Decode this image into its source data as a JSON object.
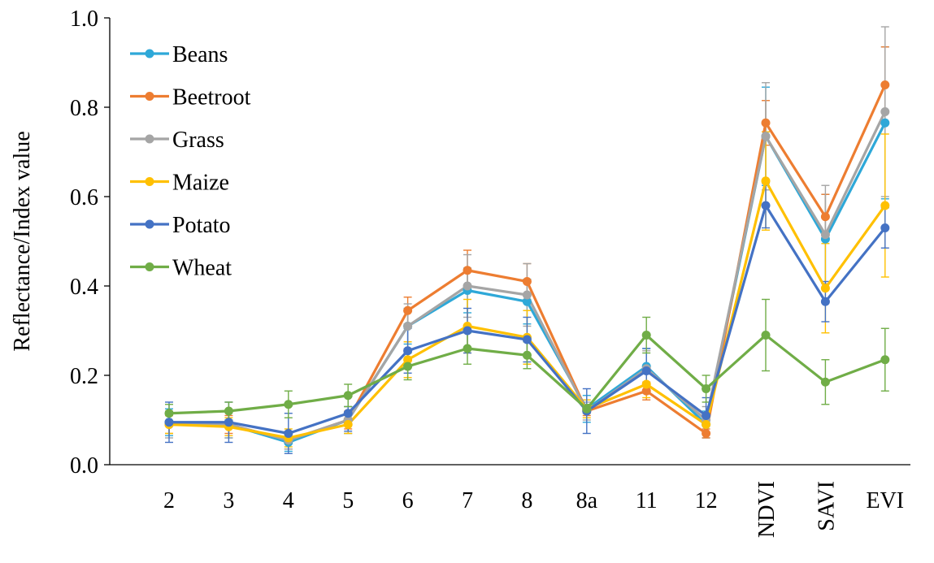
{
  "chart_data": {
    "type": "line",
    "title": "",
    "xlabel": "",
    "ylabel": "Reflectance/Index value",
    "ylim": [
      0,
      1.0
    ],
    "yticks": [
      "0.0",
      "0.2",
      "0.4",
      "0.6",
      "0.8",
      "1.0"
    ],
    "categories": [
      "2",
      "3",
      "4",
      "5",
      "6",
      "7",
      "8",
      "8a",
      "11",
      "12",
      "NDVI",
      "SAVI",
      "EVI"
    ],
    "legend_position": "top-left",
    "grid": false,
    "series": [
      {
        "name": "Beans",
        "color": "#2EA8D8",
        "values": [
          0.095,
          0.09,
          0.05,
          0.1,
          0.31,
          0.39,
          0.365,
          0.125,
          0.22,
          0.09,
          0.735,
          0.505,
          0.765
        ],
        "errors": [
          0.03,
          0.03,
          0.02,
          0.03,
          0.04,
          0.05,
          0.05,
          0.03,
          0.04,
          0.03,
          0.11,
          0.1,
          0.17
        ]
      },
      {
        "name": "Beetroot",
        "color": "#ED7D31",
        "values": [
          0.09,
          0.09,
          0.055,
          0.1,
          0.345,
          0.435,
          0.41,
          0.12,
          0.165,
          0.07,
          0.765,
          0.555,
          0.85
        ],
        "errors": [
          0.02,
          0.02,
          0.02,
          0.02,
          0.03,
          0.045,
          0.04,
          0.01,
          0.02,
          0.01,
          0.05,
          0.05,
          0.085
        ]
      },
      {
        "name": "Grass",
        "color": "#A5A5A5",
        "values": [
          0.09,
          0.09,
          0.055,
          0.1,
          0.31,
          0.4,
          0.38,
          0.12,
          0.215,
          0.1,
          0.735,
          0.515,
          0.79
        ],
        "errors": [
          0.03,
          0.03,
          0.02,
          0.03,
          0.05,
          0.07,
          0.07,
          0.02,
          0.04,
          0.03,
          0.12,
          0.11,
          0.19
        ]
      },
      {
        "name": "Maize",
        "color": "#FFC000",
        "values": [
          0.09,
          0.085,
          0.06,
          0.09,
          0.235,
          0.31,
          0.285,
          0.125,
          0.18,
          0.09,
          0.635,
          0.395,
          0.58
        ],
        "errors": [
          0.02,
          0.02,
          0.02,
          0.02,
          0.04,
          0.06,
          0.06,
          0.02,
          0.03,
          0.02,
          0.11,
          0.1,
          0.16
        ]
      },
      {
        "name": "Potato",
        "color": "#4472C4",
        "values": [
          0.095,
          0.095,
          0.07,
          0.115,
          0.255,
          0.3,
          0.28,
          0.12,
          0.21,
          0.11,
          0.58,
          0.365,
          0.53
        ],
        "errors": [
          0.045,
          0.045,
          0.045,
          0.04,
          0.05,
          0.05,
          0.05,
          0.05,
          0.05,
          0.04,
          0.05,
          0.045,
          0.045
        ]
      },
      {
        "name": "Wheat",
        "color": "#70AD47",
        "values": [
          0.115,
          0.12,
          0.135,
          0.155,
          0.22,
          0.26,
          0.245,
          0.125,
          0.29,
          0.17,
          0.29,
          0.185,
          0.235
        ],
        "errors": [
          0.02,
          0.02,
          0.03,
          0.025,
          0.03,
          0.035,
          0.03,
          0.01,
          0.04,
          0.03,
          0.08,
          0.05,
          0.07
        ]
      }
    ]
  }
}
